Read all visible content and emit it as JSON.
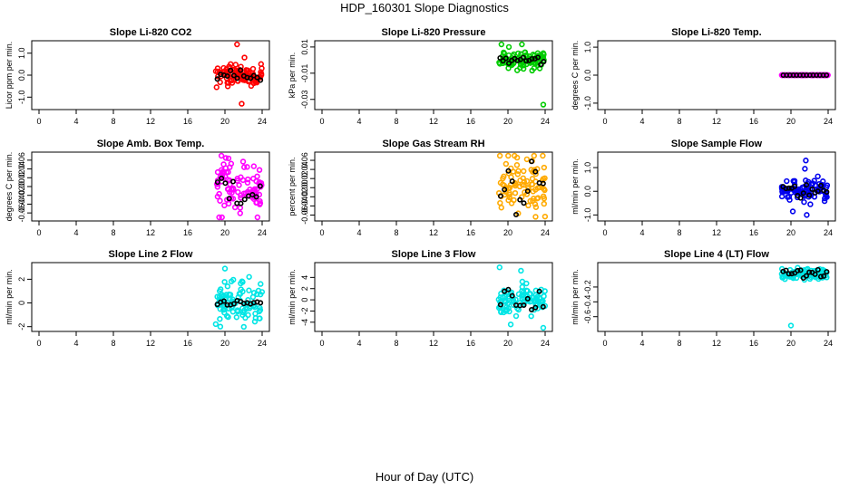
{
  "title": "HDP_160301  Slope Diagnostics",
  "xlabel": "Hour of Day (UTC)",
  "x_ticks": [
    "0",
    "4",
    "8",
    "12",
    "16",
    "20",
    "24"
  ],
  "chart_data": [
    {
      "type": "scatter",
      "title": "Slope Li-820 CO2",
      "ylabel": "Licor ppm per min.",
      "ylim": [
        -1.4,
        1.4
      ],
      "yticks": [
        "-1.0",
        "0.0",
        "1.0"
      ],
      "ytick_values": [
        -1,
        0,
        1
      ],
      "color": "#ff0000",
      "mean_color": "#000000",
      "x_range": [
        19,
        24
      ],
      "spread": 0.22,
      "outliers": [
        [
          21.3,
          1.4
        ],
        [
          22.1,
          0.8
        ],
        [
          21.8,
          -1.3
        ],
        [
          19.1,
          -0.55
        ]
      ],
      "mean_spread": 0.12,
      "mean_count": 14
    },
    {
      "type": "scatter",
      "title": "Slope Li-820 Pressure",
      "ylabel": "kPa per min.",
      "ylim": [
        -0.035,
        0.012
      ],
      "yticks": [
        "-0.03",
        "-0.01",
        "0.01"
      ],
      "ytick_values": [
        -0.03,
        -0.01,
        0.01
      ],
      "color": "#00cc00",
      "mean_color": "#000000",
      "x_range": [
        19,
        24
      ],
      "center": 0.0,
      "spread": 0.003,
      "outliers": [
        [
          23.8,
          -0.034
        ],
        [
          22.6,
          -0.008
        ],
        [
          21.5,
          0.012
        ],
        [
          20.1,
          0.01
        ],
        [
          19.3,
          0.012
        ]
      ],
      "mean_spread": 0.002,
      "mean_count": 16
    },
    {
      "type": "scatter",
      "title": "Slope Li-820 Temp.",
      "ylabel": "degrees C per min.",
      "ylim": [
        -1.1,
        1.1
      ],
      "yticks": [
        "-1.0",
        "0.0",
        "1.0"
      ],
      "ytick_values": [
        -1,
        0,
        1
      ],
      "color": "#ff00ff",
      "mean_color": "#000000",
      "x_range": [
        19,
        24
      ],
      "spread": 0.0,
      "outliers": [],
      "mean_spread": 0.0,
      "mean_count": 14
    },
    {
      "type": "scatter",
      "title": "Slope Amb. Box Temp.",
      "ylabel": "degrees C per min.",
      "ylim": [
        -0.07,
        0.07
      ],
      "yticks": [
        "-0.06",
        "-0.04",
        "-0.02",
        "0.00",
        "0.02",
        "0.04",
        "0.06"
      ],
      "ytick_values": [
        -0.06,
        -0.04,
        -0.02,
        0,
        0.02,
        0.04,
        0.06
      ],
      "color": "#ff00ff",
      "mean_color": "#000000",
      "x_range": [
        19,
        24
      ],
      "spread": 0.03,
      "outliers": [
        [
          23.5,
          -0.07
        ],
        [
          20.1,
          0.065
        ]
      ],
      "mean_spread": 0.025,
      "mean_count": 12
    },
    {
      "type": "scatter",
      "title": "Slope Gas Stream RH",
      "ylabel": "percent per min.",
      "ylim": [
        -0.065,
        0.07
      ],
      "yticks": [
        "-0.06",
        "-0.04",
        "-0.02",
        "0.00",
        "0.02",
        "0.04",
        "0.06"
      ],
      "ytick_values": [
        -0.06,
        -0.04,
        -0.02,
        0,
        0.02,
        0.04,
        0.06
      ],
      "color": "#ffaa00",
      "mean_color": "#000000",
      "x_range": [
        19,
        24
      ],
      "spread": 0.035,
      "outliers": [],
      "mean_spread": 0.03,
      "mean_count": 12
    },
    {
      "type": "scatter",
      "title": "Slope Sample Flow",
      "ylabel": "ml/min per min.",
      "ylim": [
        -1.1,
        1.5
      ],
      "yticks": [
        "-1.0",
        "0.0",
        "1.0"
      ],
      "ytick_values": [
        -1,
        0,
        1
      ],
      "color": "#0000ee",
      "mean_color": "#000000",
      "x_range": [
        19,
        24
      ],
      "spread": 0.28,
      "outliers": [
        [
          21.6,
          1.3
        ],
        [
          21.7,
          -1.0
        ],
        [
          20.2,
          -0.85
        ],
        [
          21.5,
          0.95
        ]
      ],
      "mean_spread": 0.15,
      "mean_count": 16
    },
    {
      "type": "scatter",
      "title": "Slope Line 2 Flow",
      "ylabel": "ml/min per min.",
      "ylim": [
        -2.1,
        3.1
      ],
      "yticks": [
        "-2",
        "0",
        "2"
      ],
      "ytick_values": [
        -2,
        0,
        2
      ],
      "color": "#00e5e5",
      "mean_color": "#000000",
      "x_range": [
        19,
        24
      ],
      "spread": 0.9,
      "outliers": [
        [
          20,
          2.9
        ],
        [
          22.6,
          2.2
        ],
        [
          19.5,
          -2.0
        ],
        [
          23.7,
          -1.3
        ]
      ],
      "mean_spread": 0.1,
      "mean_count": 14
    },
    {
      "type": "scatter",
      "title": "Slope Line 3 Flow",
      "ylabel": "ml/min per min.",
      "ylim": [
        -5,
        6
      ],
      "yticks": [
        "-4",
        "-2",
        "0",
        "2",
        "4"
      ],
      "ytick_values": [
        -4,
        -2,
        0,
        2,
        4
      ],
      "color": "#00e5e5",
      "mean_color": "#000000",
      "x_range": [
        19,
        24
      ],
      "spread": 1.3,
      "outliers": [
        [
          19.1,
          5.8
        ],
        [
          23.8,
          -5
        ],
        [
          21.4,
          5.2
        ],
        [
          20.3,
          -4.4
        ]
      ],
      "mean_spread": 1.1,
      "mean_count": 12
    },
    {
      "type": "scatter",
      "title": "Slope Line 4 (LT) Flow",
      "ylabel": "ml/min per min.",
      "ylim": [
        -0.75,
        0.08
      ],
      "yticks": [
        "-0.6",
        "-0.4",
        "-0.2"
      ],
      "ytick_values": [
        -0.6,
        -0.4,
        -0.2
      ],
      "color": "#00e5e5",
      "mean_color": "#000000",
      "x_range": [
        19,
        24
      ],
      "center": -0.02,
      "spread": 0.035,
      "outliers": [
        [
          20,
          -0.72
        ],
        [
          22.2,
          0.02
        ],
        [
          20.8,
          0.01
        ]
      ],
      "mean_spread": 0.03,
      "mean_count": 16
    }
  ]
}
